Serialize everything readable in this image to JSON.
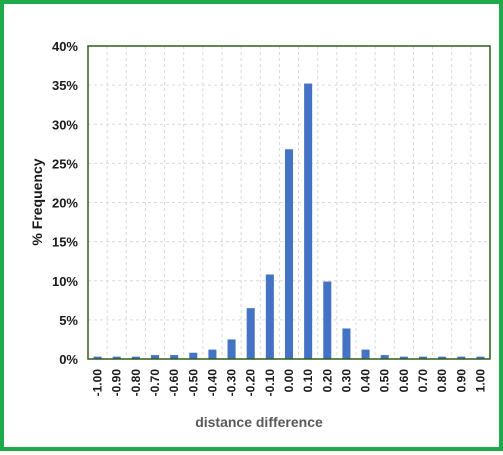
{
  "chart_data": {
    "type": "bar",
    "title": "",
    "xlabel": "distance difference",
    "ylabel": "% Frequency",
    "ylim": [
      0,
      40
    ],
    "yticks": [
      0,
      5,
      10,
      15,
      20,
      25,
      30,
      35,
      40
    ],
    "ytick_labels": [
      "0%",
      "5%",
      "10%",
      "15%",
      "20%",
      "25%",
      "30%",
      "35%",
      "40%"
    ],
    "categories": [
      "-1.00",
      "-0.90",
      "-0.80",
      "-0.70",
      "-0.60",
      "-0.50",
      "-0.40",
      "-0.30",
      "-0.20",
      "-0.10",
      "0.00",
      "0.10",
      "0.20",
      "0.30",
      "0.40",
      "0.50",
      "0.60",
      "0.70",
      "0.80",
      "0.90",
      "1.00"
    ],
    "values": [
      0.3,
      0.3,
      0.3,
      0.5,
      0.5,
      0.8,
      1.2,
      2.5,
      6.5,
      10.8,
      26.8,
      35.2,
      9.9,
      3.9,
      1.2,
      0.5,
      0.3,
      0.3,
      0.3,
      0.3,
      0.3
    ],
    "grid": "dashed",
    "legend": "none",
    "colors": {
      "bar": "#4472c4",
      "frame_border": "#1faa4a",
      "plot_border": "#2f5e1a",
      "grid": "#d9d9d9",
      "text": "#1a1a1a",
      "xlabel": "#595959"
    }
  }
}
